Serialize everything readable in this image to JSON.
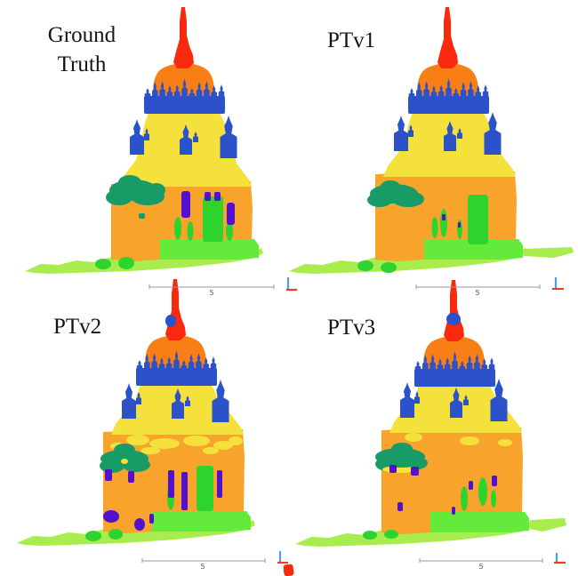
{
  "figure": {
    "background_color": "#ffffff",
    "panels": [
      {
        "id": "ground-truth",
        "label": "Ground Truth"
      },
      {
        "id": "ptv1",
        "label": "PTv1"
      },
      {
        "id": "ptv2",
        "label": "PTv2"
      },
      {
        "id": "ptv3",
        "label": "PTv3"
      }
    ],
    "scale_bars": [
      {
        "panel": "ground-truth",
        "label": "5"
      },
      {
        "panel": "ptv1",
        "label": "5"
      },
      {
        "panel": "ptv2",
        "label": "5"
      },
      {
        "panel": "ptv3",
        "label": "5"
      }
    ],
    "scale_bar_color": "#999999",
    "label_color": "#141414",
    "axis_gizmo": {
      "vertical_color": "#4a9cf0",
      "horizontal_color": "#ee3b2b"
    },
    "palette": {
      "spire": "#f9290e",
      "dome": "#f87f15",
      "pinnacle": "#2b52c8",
      "tier": "#f5e13c",
      "wall": "#f8a42c",
      "bush": "#189b67",
      "tree": "#2ed32e",
      "door": "#2ed32e",
      "accent": "#5310cf",
      "platform": "#63ea3a",
      "ground": "#a8ed4d"
    }
  }
}
